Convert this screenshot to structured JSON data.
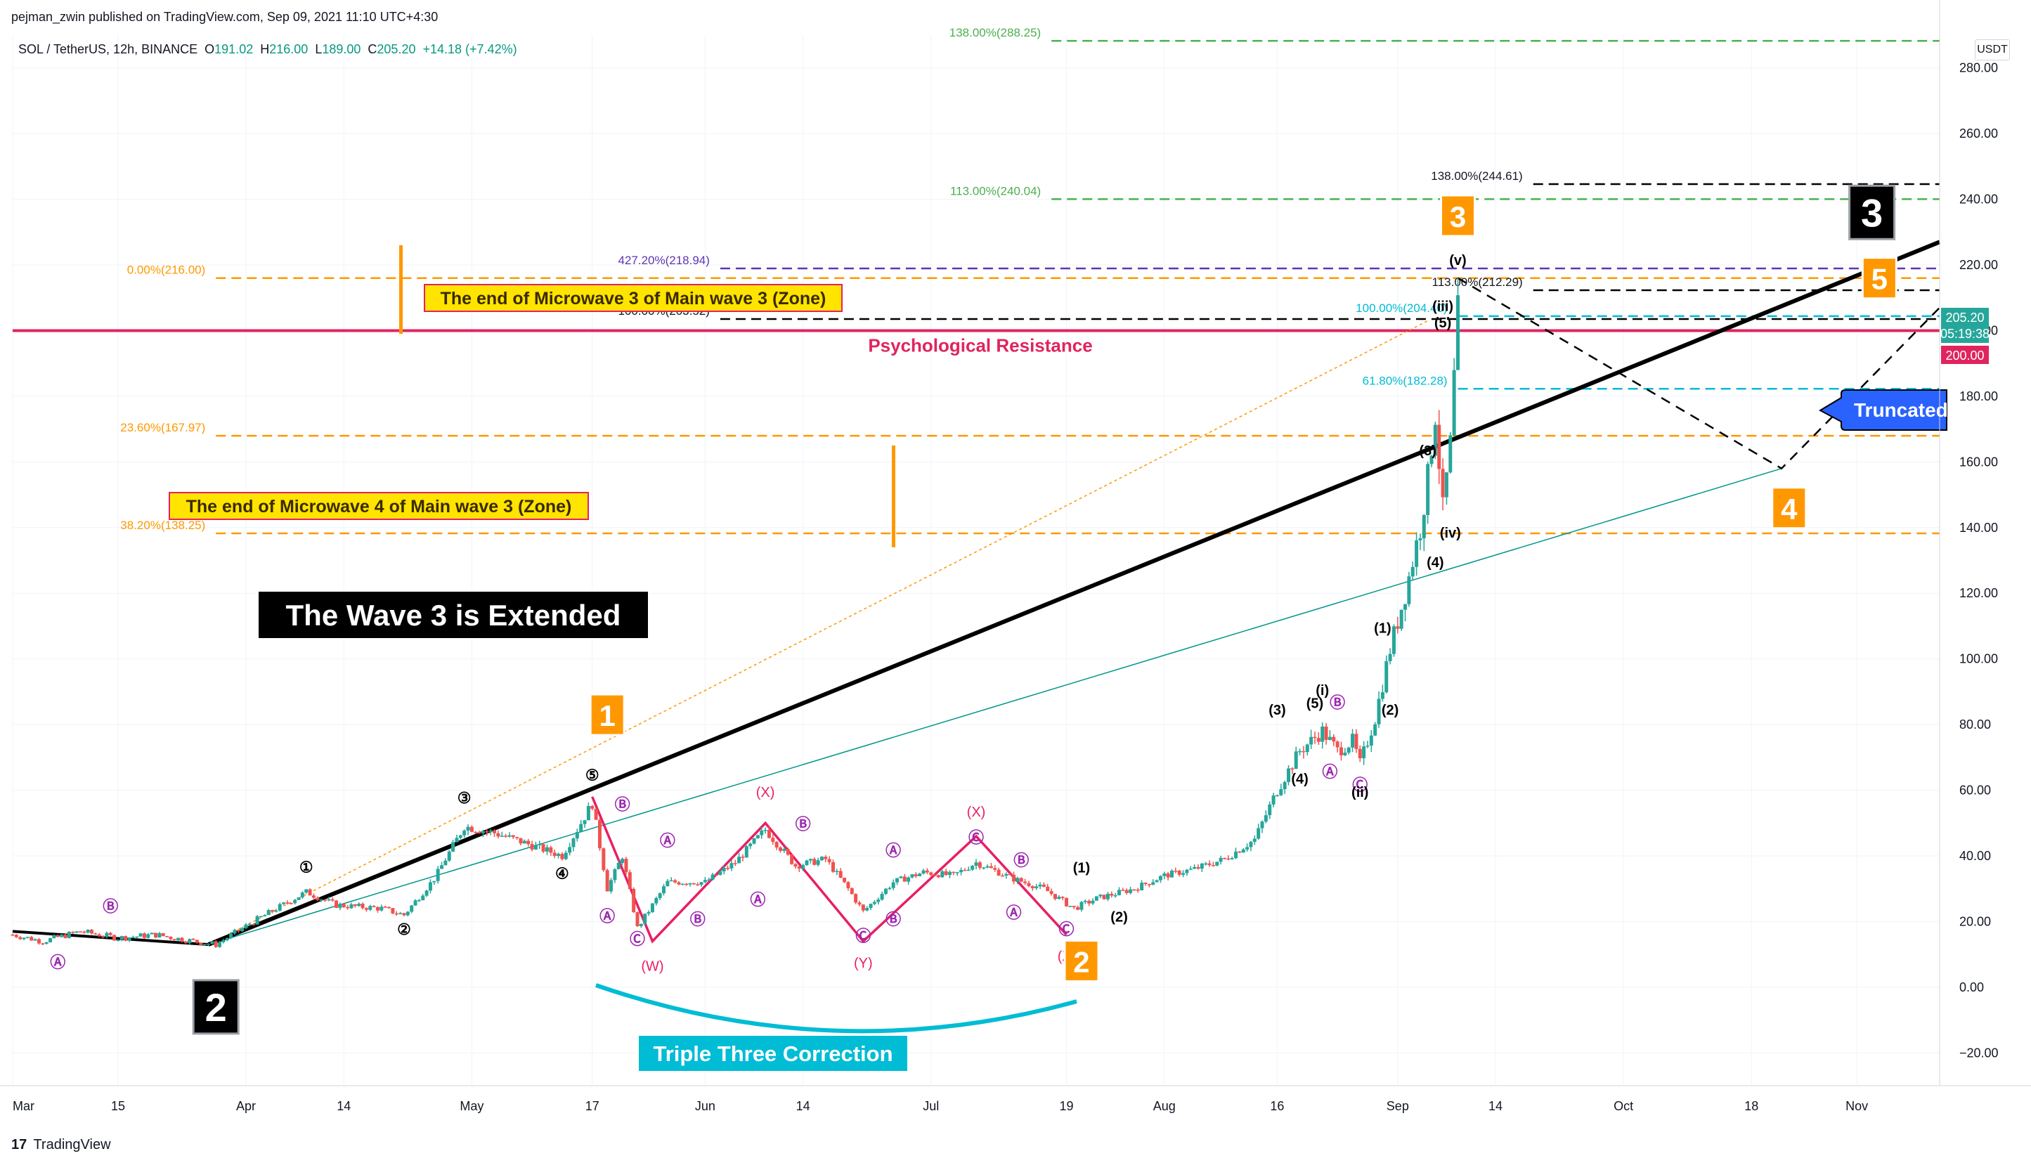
{
  "header": {
    "published": "pejman_zwin published on TradingView.com, Sep 09, 2021 11:10 UTC+4:30",
    "symbol": "SOL / TetherUS, 12h, BINANCE",
    "o_label": "O",
    "o": "191.02",
    "h_label": "H",
    "h": "216.00",
    "l_label": "L",
    "l": "189.00",
    "c_label": "C",
    "c": "205.20",
    "change": "+14.18 (+7.42%)",
    "currency": "USDT"
  },
  "footer": {
    "brand": "TradingView",
    "logo_glyph": "17"
  },
  "colors": {
    "up": "#26a69a",
    "down": "#ef5350",
    "black": "#000000",
    "orange": "#ff9800",
    "magenta": "#e91e63",
    "purple": "#9c27b0",
    "green": "#4caf50",
    "cyan": "#00bcd4",
    "teal": "#009688",
    "blue": "#2962ff",
    "navy": "#311b92",
    "pink_line": "#e0245e"
  },
  "chart_data": {
    "type": "candlestick",
    "y_range": [
      -30,
      290
    ],
    "y_ticks": [
      -20,
      0,
      20,
      40,
      60,
      80,
      100,
      120,
      140,
      160,
      180,
      200,
      220,
      240,
      260,
      280
    ],
    "y_tick_labels": [
      "−20.00",
      "0.00",
      "20.00",
      "40.00",
      "60.00",
      "80.00",
      "100.00",
      "120.00",
      "140.00",
      "160.00",
      "180.00",
      "200.00",
      "220.00",
      "240.00",
      "260.00",
      "280.00"
    ],
    "x_start": "2021-03-01",
    "x_end": "2021-11-12",
    "x_ticks": [
      {
        "date": "2021-03-01",
        "label": "Mar"
      },
      {
        "date": "2021-03-15",
        "label": "15"
      },
      {
        "date": "2021-04-01",
        "label": "Apr"
      },
      {
        "date": "2021-04-14",
        "label": "14"
      },
      {
        "date": "2021-05-01",
        "label": "May"
      },
      {
        "date": "2021-05-17",
        "label": "17"
      },
      {
        "date": "2021-06-01",
        "label": "Jun"
      },
      {
        "date": "2021-06-14",
        "label": "14"
      },
      {
        "date": "2021-07-01",
        "label": "Jul"
      },
      {
        "date": "2021-07-19",
        "label": "19"
      },
      {
        "date": "2021-08-01",
        "label": "Aug"
      },
      {
        "date": "2021-08-16",
        "label": "16"
      },
      {
        "date": "2021-09-01",
        "label": "Sep"
      },
      {
        "date": "2021-09-14",
        "label": "14"
      },
      {
        "date": "2021-10-01",
        "label": "Oct"
      },
      {
        "date": "2021-10-18",
        "label": "18"
      },
      {
        "date": "2021-11-01",
        "label": "Nov"
      }
    ],
    "price_path": [
      [
        "2021-03-01",
        16
      ],
      [
        "2021-03-05",
        14
      ],
      [
        "2021-03-10",
        17
      ],
      [
        "2021-03-15",
        15
      ],
      [
        "2021-03-20",
        16
      ],
      [
        "2021-03-25",
        14
      ],
      [
        "2021-03-28",
        13
      ],
      [
        "2021-04-02",
        20
      ],
      [
        "2021-04-09",
        29
      ],
      [
        "2021-04-13",
        25
      ],
      [
        "2021-04-19",
        24
      ],
      [
        "2021-04-22",
        22
      ],
      [
        "2021-04-26",
        33
      ],
      [
        "2021-04-30",
        49
      ],
      [
        "2021-05-04",
        47
      ],
      [
        "2021-05-08",
        44
      ],
      [
        "2021-05-13",
        40
      ],
      [
        "2021-05-17",
        56
      ],
      [
        "2021-05-19",
        30
      ],
      [
        "2021-05-21",
        40
      ],
      [
        "2021-05-23",
        18
      ],
      [
        "2021-05-27",
        32
      ],
      [
        "2021-06-01",
        32
      ],
      [
        "2021-06-05",
        38
      ],
      [
        "2021-06-09",
        48
      ],
      [
        "2021-06-13",
        37
      ],
      [
        "2021-06-17",
        39
      ],
      [
        "2021-06-20",
        30
      ],
      [
        "2021-06-22",
        23
      ],
      [
        "2021-06-26",
        32
      ],
      [
        "2021-06-30",
        35
      ],
      [
        "2021-07-04",
        34
      ],
      [
        "2021-07-07",
        38
      ],
      [
        "2021-07-12",
        33
      ],
      [
        "2021-07-16",
        30
      ],
      [
        "2021-07-20",
        24
      ],
      [
        "2021-07-23",
        27
      ],
      [
        "2021-07-28",
        30
      ],
      [
        "2021-08-01",
        34
      ],
      [
        "2021-08-05",
        36
      ],
      [
        "2021-08-09",
        39
      ],
      [
        "2021-08-13",
        45
      ],
      [
        "2021-08-16",
        60
      ],
      [
        "2021-08-19",
        72
      ],
      [
        "2021-08-22",
        78
      ],
      [
        "2021-08-24",
        72
      ],
      [
        "2021-08-26",
        75
      ],
      [
        "2021-08-27",
        68
      ],
      [
        "2021-08-29",
        82
      ],
      [
        "2021-08-31",
        103
      ],
      [
        "2021-09-02",
        120
      ],
      [
        "2021-09-04",
        140
      ],
      [
        "2021-09-05",
        155
      ],
      [
        "2021-09-06",
        175
      ],
      [
        "2021-09-07",
        145
      ],
      [
        "2021-09-08",
        165
      ],
      [
        "2021-09-09",
        205
      ]
    ],
    "h_lines": [
      {
        "price": 288.25,
        "color": "#4caf50",
        "label": "138.00%(288.25)",
        "from": "2021-06-19",
        "to": "2021-11-12"
      },
      {
        "price": 244.61,
        "color": "#000000",
        "label": "138.00%(244.61)",
        "from": "2021-08-22",
        "to": "2021-11-12"
      },
      {
        "price": 240.04,
        "color": "#4caf50",
        "label": "113.00%(240.04)",
        "from": "2021-06-19",
        "to": "2021-11-12"
      },
      {
        "price": 218.94,
        "color": "#5e35b1",
        "label": "427.20%(218.94)",
        "from": "2021-05-06",
        "to": "2021-11-12"
      },
      {
        "price": 216.0,
        "color": "#ff9800",
        "label": "0.00%(216.00)",
        "from": "2021-02-28",
        "to": "2021-11-12"
      },
      {
        "price": 212.29,
        "color": "#000000",
        "label": "113.00%(212.29)",
        "from": "2021-08-22",
        "to": "2021-11-12"
      },
      {
        "price": 204.4,
        "color": "#00bcd4",
        "label": "100.00%(204.40)",
        "from": "2021-08-12",
        "to": "2021-11-12"
      },
      {
        "price": 203.52,
        "color": "#000000",
        "label": "100.00%(203.52)",
        "from": "2021-05-06",
        "to": "2021-11-12"
      },
      {
        "price": 182.28,
        "color": "#00bcd4",
        "label": "61.80%(182.28)",
        "from": "2021-08-12",
        "to": "2021-11-12"
      },
      {
        "price": 167.97,
        "color": "#ff9800",
        "label": "23.60%(167.97)",
        "from": "2021-02-28",
        "to": "2021-11-12"
      },
      {
        "price": 138.25,
        "color": "#ff9800",
        "label": "38.20%(138.25)",
        "from": "2021-02-28",
        "to": "2021-11-12"
      }
    ],
    "psych_resistance": {
      "price": 200,
      "label": "Psychological Resistance"
    },
    "price_labels": {
      "last": "205.20",
      "countdown": "05:19:38",
      "level": "200.00"
    },
    "annotations": {
      "zone3": "The end of Microwave 3 of Main wave 3 (Zone)",
      "zone4": "The end of Microwave 4 of Main wave 3 (Zone)",
      "extended": "The Wave 3 is Extended",
      "triple": "Triple Three Correction",
      "truncated": "Truncated"
    },
    "big_labels": [
      {
        "text": "2",
        "date": "2021-03-28",
        "price": -6,
        "style": "black"
      },
      {
        "text": "3",
        "date": "2021-11-03",
        "price": 236,
        "style": "black"
      },
      {
        "text": "1",
        "date": "2021-05-19",
        "price": 83,
        "style": "orange"
      },
      {
        "text": "2",
        "date": "2021-07-21",
        "price": 8,
        "style": "orange"
      },
      {
        "text": "3",
        "date": "2021-09-09",
        "price": 235,
        "style": "orange"
      },
      {
        "text": "4",
        "date": "2021-10-23",
        "price": 146,
        "style": "orange"
      },
      {
        "text": "5",
        "date": "2021-11-04",
        "price": 216,
        "style": "orange"
      }
    ],
    "wave_labels": [
      {
        "text": "①",
        "date": "2021-04-09",
        "price": 35,
        "color": "#000000"
      },
      {
        "text": "②",
        "date": "2021-04-22",
        "price": 16,
        "color": "#000000"
      },
      {
        "text": "③",
        "date": "2021-04-30",
        "price": 56,
        "color": "#000000"
      },
      {
        "text": "④",
        "date": "2021-05-13",
        "price": 33,
        "color": "#000000"
      },
      {
        "text": "⑤",
        "date": "2021-05-17",
        "price": 63,
        "color": "#000000"
      },
      {
        "text": "Ⓐ",
        "date": "2021-03-07",
        "price": 6,
        "color": "#9c27b0"
      },
      {
        "text": "Ⓑ",
        "date": "2021-03-14",
        "price": 23,
        "color": "#9c27b0"
      },
      {
        "text": "Ⓒ",
        "date": "2021-03-28",
        "price": -5,
        "color": "#9c27b0"
      },
      {
        "text": "Ⓐ",
        "date": "2021-05-19",
        "price": 20,
        "color": "#9c27b0"
      },
      {
        "text": "Ⓑ",
        "date": "2021-05-21",
        "price": 54,
        "color": "#9c27b0"
      },
      {
        "text": "Ⓒ",
        "date": "2021-05-23",
        "price": 13,
        "color": "#9c27b0"
      },
      {
        "text": "Ⓐ",
        "date": "2021-05-27",
        "price": 43,
        "color": "#9c27b0"
      },
      {
        "text": "Ⓑ",
        "date": "2021-05-31",
        "price": 19,
        "color": "#9c27b0"
      },
      {
        "text": "(W)",
        "date": "2021-05-25",
        "price": 5,
        "color": "#e91e63"
      },
      {
        "text": "Ⓐ",
        "date": "2021-06-08",
        "price": 25,
        "color": "#9c27b0"
      },
      {
        "text": "Ⓑ",
        "date": "2021-06-14",
        "price": 48,
        "color": "#9c27b0"
      },
      {
        "text": "Ⓒ",
        "date": "2021-06-22",
        "price": 14,
        "color": "#9c27b0"
      },
      {
        "text": "(X)",
        "date": "2021-06-09",
        "price": 58,
        "color": "#e91e63"
      },
      {
        "text": "Ⓐ",
        "date": "2021-06-26",
        "price": 40,
        "color": "#9c27b0"
      },
      {
        "text": "Ⓑ",
        "date": "2021-06-26",
        "price": 19,
        "color": "#9c27b0"
      },
      {
        "text": "(Y)",
        "date": "2021-06-22",
        "price": 6,
        "color": "#e91e63"
      },
      {
        "text": "Ⓒ",
        "date": "2021-07-07",
        "price": 44,
        "color": "#9c27b0"
      },
      {
        "text": "(X)",
        "date": "2021-07-07",
        "price": 52,
        "color": "#e91e63"
      },
      {
        "text": "Ⓐ",
        "date": "2021-07-12",
        "price": 21,
        "color": "#9c27b0"
      },
      {
        "text": "Ⓑ",
        "date": "2021-07-13",
        "price": 37,
        "color": "#9c27b0"
      },
      {
        "text": "Ⓒ",
        "date": "2021-07-19",
        "price": 16,
        "color": "#9c27b0"
      },
      {
        "text": "(Z)",
        "date": "2021-07-19",
        "price": 8,
        "color": "#e91e63"
      },
      {
        "text": "(1)",
        "date": "2021-07-21",
        "price": 35,
        "color": "#000000"
      },
      {
        "text": "(2)",
        "date": "2021-07-26",
        "price": 20,
        "color": "#000000"
      },
      {
        "text": "(3)",
        "date": "2021-08-16",
        "price": 83,
        "color": "#000000"
      },
      {
        "text": "(4)",
        "date": "2021-08-19",
        "price": 62,
        "color": "#000000"
      },
      {
        "text": "(5)",
        "date": "2021-08-21",
        "price": 85,
        "color": "#000000"
      },
      {
        "text": "(i)",
        "date": "2021-08-22",
        "price": 89,
        "color": "#000000"
      },
      {
        "text": "Ⓐ",
        "date": "2021-08-23",
        "price": 64,
        "color": "#9c27b0"
      },
      {
        "text": "Ⓑ",
        "date": "2021-08-24",
        "price": 85,
        "color": "#9c27b0"
      },
      {
        "text": "Ⓒ",
        "date": "2021-08-27",
        "price": 60,
        "color": "#9c27b0"
      },
      {
        "text": "(ii)",
        "date": "2021-08-27",
        "price": 58,
        "color": "#000000"
      },
      {
        "text": "(1)",
        "date": "2021-08-30",
        "price": 108,
        "color": "#000000"
      },
      {
        "text": "(2)",
        "date": "2021-08-31",
        "price": 83,
        "color": "#000000"
      },
      {
        "text": "(3)",
        "date": "2021-09-05",
        "price": 162,
        "color": "#000000"
      },
      {
        "text": "(4)",
        "date": "2021-09-06",
        "price": 128,
        "color": "#000000"
      },
      {
        "text": "(5)",
        "date": "2021-09-07",
        "price": 201,
        "color": "#000000"
      },
      {
        "text": "(iii)",
        "date": "2021-09-07",
        "price": 206,
        "color": "#000000"
      },
      {
        "text": "(iv)",
        "date": "2021-09-08",
        "price": 137,
        "color": "#000000"
      },
      {
        "text": "(v)",
        "date": "2021-09-09",
        "price": 220,
        "color": "#000000"
      }
    ],
    "trendline": {
      "from": [
        "2021-03-27",
        13
      ],
      "to": [
        "2021-11-12",
        227
      ],
      "color": "#000000"
    },
    "lower_trendline": {
      "from": [
        "2021-03-27",
        13
      ],
      "to": [
        "2021-10-22",
        158
      ],
      "color": "#009688"
    },
    "fib_ray": {
      "from": [
        "2021-03-27",
        13
      ],
      "to": [
        "2021-09-05",
        203
      ],
      "color": "#ff9800"
    },
    "projection": [
      [
        "2021-09-09",
        216
      ],
      [
        "2021-10-22",
        158
      ],
      [
        "2021-11-12",
        207
      ]
    ],
    "triple_three_path": [
      [
        "2021-05-17",
        58
      ],
      [
        "2021-05-25",
        14
      ],
      [
        "2021-06-09",
        50
      ],
      [
        "2021-06-22",
        14
      ],
      [
        "2021-07-07",
        46
      ],
      [
        "2021-07-19",
        16
      ]
    ]
  }
}
